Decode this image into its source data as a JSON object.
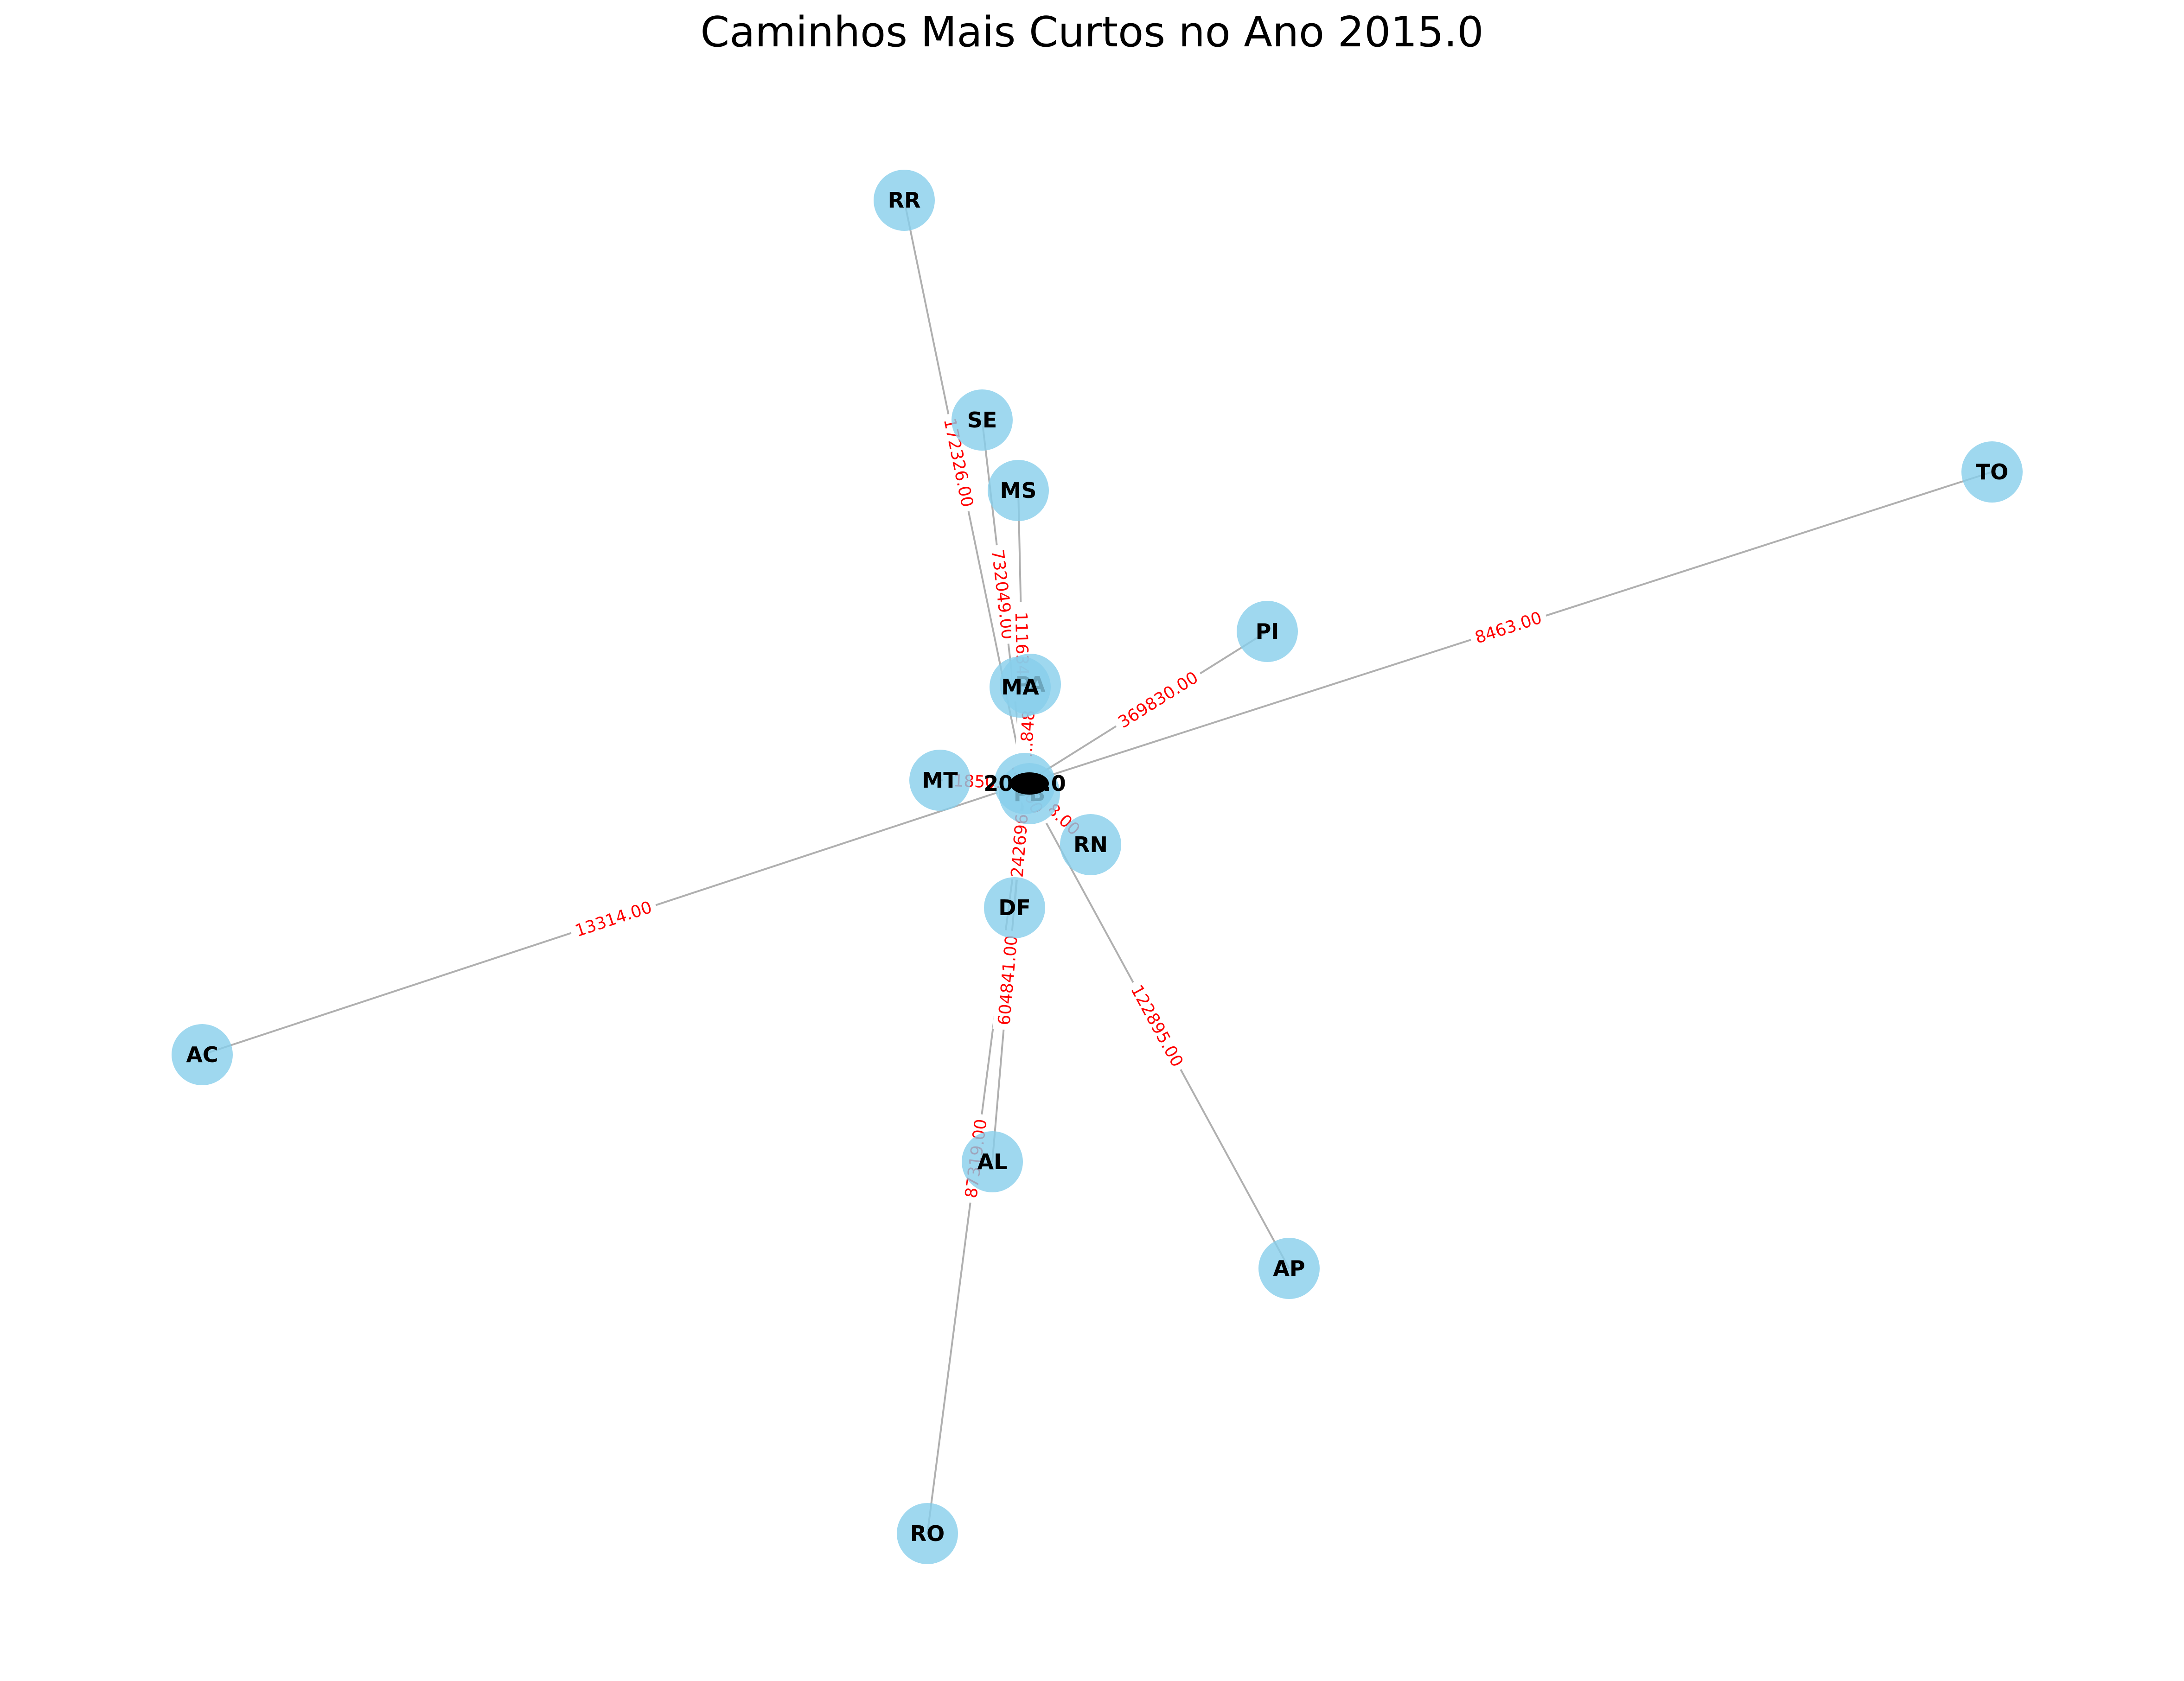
{
  "title": "Caminhos Mais Curtos no Ano 2015.0",
  "colors": {
    "node": "#87ceeb",
    "edge": "#b0b0b0",
    "edge_label": "#ff0000",
    "node_label": "#000000"
  },
  "hub_label": "2015.0",
  "nodes": [
    {
      "id": "RR",
      "label": "RR"
    },
    {
      "id": "SE",
      "label": "SE"
    },
    {
      "id": "MS",
      "label": "MS"
    },
    {
      "id": "TO",
      "label": "TO"
    },
    {
      "id": "PI",
      "label": "PI"
    },
    {
      "id": "PA",
      "label": "PA"
    },
    {
      "id": "MA",
      "label": "MA"
    },
    {
      "id": "MT",
      "label": "MT"
    },
    {
      "id": "PB",
      "label": "PB"
    },
    {
      "id": "RN",
      "label": "RN"
    },
    {
      "id": "DF",
      "label": "DF"
    },
    {
      "id": "AC",
      "label": "AC"
    },
    {
      "id": "AL",
      "label": "AL"
    },
    {
      "id": "AP",
      "label": "AP"
    },
    {
      "id": "RO",
      "label": "RO"
    }
  ],
  "edges": [
    {
      "to": "RR",
      "label": "172326.00"
    },
    {
      "to": "SE",
      "label": "732049.00"
    },
    {
      "to": "MS",
      "label": "111634..."
    },
    {
      "to": "TO",
      "label": "8463.00"
    },
    {
      "to": "PI",
      "label": "369830.00"
    },
    {
      "to": "AC",
      "label": "13314.00"
    },
    {
      "to": "AP",
      "label": "122895.00"
    },
    {
      "to": "AL",
      "label": "604841.00"
    },
    {
      "to": "RO",
      "label": "87319.00"
    },
    {
      "to": "DF",
      "label": "242696"
    },
    {
      "to": "MT",
      "label": "1850..."
    },
    {
      "to": "RN",
      "label": "...8.00"
    },
    {
      "to": "PA",
      "label": "...848"
    },
    {
      "to": "PB",
      "label": "...7.00"
    }
  ]
}
